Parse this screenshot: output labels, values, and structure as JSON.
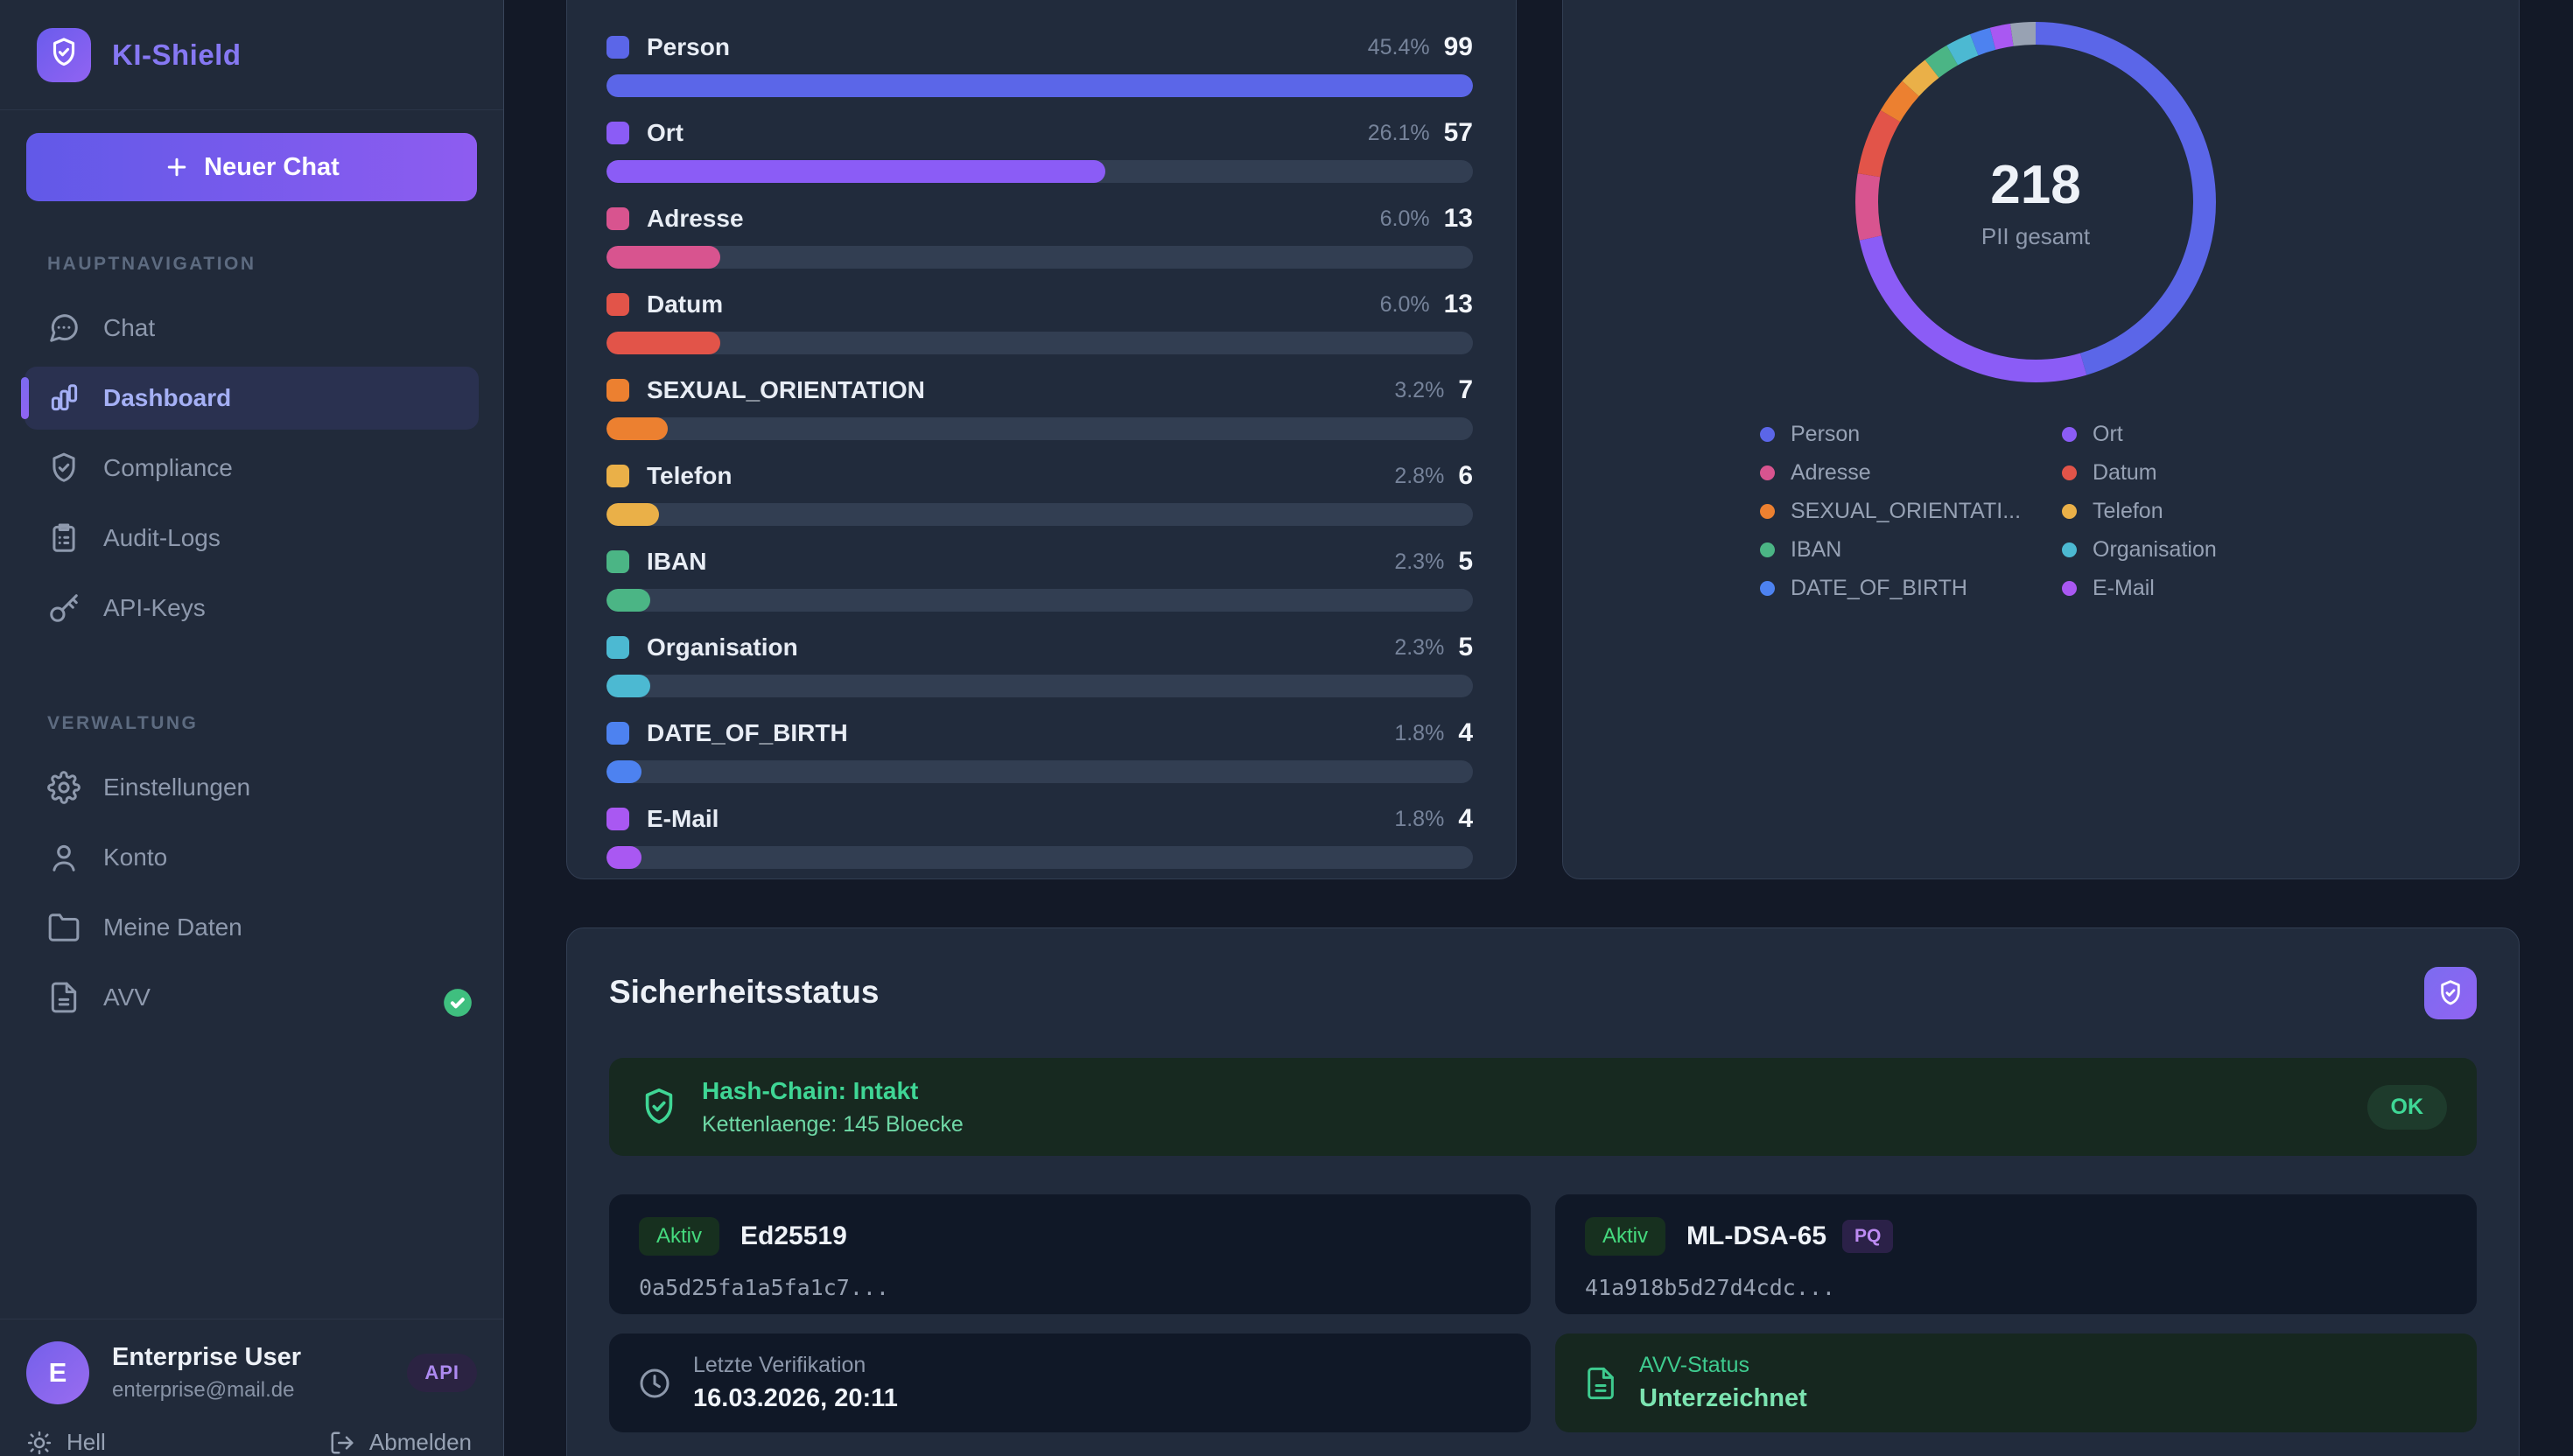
{
  "app": {
    "name": "KI-Shield"
  },
  "sidebar": {
    "new_chat": "Neuer Chat",
    "sections": [
      {
        "label": "HAUPTNAVIGATION",
        "items": [
          {
            "label": "Chat",
            "icon": "chat",
            "active": false
          },
          {
            "label": "Dashboard",
            "icon": "bar-chart",
            "active": true
          },
          {
            "label": "Compliance",
            "icon": "shield-check",
            "active": false
          },
          {
            "label": "Audit-Logs",
            "icon": "clipboard",
            "active": false
          },
          {
            "label": "API-Keys",
            "icon": "key",
            "active": false
          }
        ]
      },
      {
        "label": "VERWALTUNG",
        "items": [
          {
            "label": "Einstellungen",
            "icon": "gear",
            "active": false
          },
          {
            "label": "Konto",
            "icon": "user",
            "active": false
          },
          {
            "label": "Meine Daten",
            "icon": "folder",
            "active": false
          },
          {
            "label": "AVV",
            "icon": "file-text",
            "active": false,
            "check_badge": true
          }
        ]
      }
    ],
    "user": {
      "initial": "E",
      "name": "Enterprise User",
      "email": "enterprise@mail.de",
      "badge": "API"
    },
    "footer": {
      "theme": "Hell",
      "logout": "Abmelden"
    }
  },
  "chart_data": [
    {
      "type": "bar",
      "orientation": "horizontal",
      "categories": [
        "Person",
        "Ort",
        "Adresse",
        "Datum",
        "SEXUAL_ORIENTATION",
        "Telefon",
        "IBAN",
        "Organisation",
        "DATE_OF_BIRTH",
        "E-Mail"
      ],
      "values": [
        99,
        57,
        13,
        13,
        7,
        6,
        5,
        5,
        4,
        4
      ],
      "percent_labels": [
        "45.4%",
        "26.1%",
        "6.0%",
        "6.0%",
        "3.2%",
        "2.8%",
        "2.3%",
        "2.3%",
        "1.8%",
        "1.8%"
      ],
      "colors": [
        "#5b66e8",
        "#8b5cf6",
        "#d8548f",
        "#e25449",
        "#ec8030",
        "#eab048",
        "#4bb585",
        "#4cb9d2",
        "#4d82f0",
        "#a958f2"
      ],
      "xlim": [
        0,
        99
      ],
      "title": ""
    },
    {
      "type": "donut",
      "total": 218,
      "center_value": "218",
      "center_label": "PII gesamt",
      "segments": [
        {
          "label": "Person",
          "value": 99,
          "color": "#5b66e8"
        },
        {
          "label": "Ort",
          "value": 57,
          "color": "#8b5cf6"
        },
        {
          "label": "Adresse",
          "value": 13,
          "color": "#d8548f"
        },
        {
          "label": "Datum",
          "value": 13,
          "color": "#e25449"
        },
        {
          "label": "SEXUAL_ORIENTATION",
          "value": 7,
          "color": "#ec8030"
        },
        {
          "label": "Telefon",
          "value": 6,
          "color": "#eab048"
        },
        {
          "label": "IBAN",
          "value": 5,
          "color": "#4bb585"
        },
        {
          "label": "Organisation",
          "value": 5,
          "color": "#4cb9d2"
        },
        {
          "label": "DATE_OF_BIRTH",
          "value": 4,
          "color": "#4d82f0"
        },
        {
          "label": "E-Mail",
          "value": 4,
          "color": "#a958f2"
        },
        {
          "label": "",
          "value": 5,
          "color": "#98a2b3"
        }
      ],
      "legend": [
        {
          "label": "Person",
          "color": "#5b66e8"
        },
        {
          "label": "Ort",
          "color": "#8b5cf6"
        },
        {
          "label": "Adresse",
          "color": "#d8548f"
        },
        {
          "label": "Datum",
          "color": "#e25449"
        },
        {
          "label": "SEXUAL_ORIENTATI...",
          "color": "#ec8030"
        },
        {
          "label": "Telefon",
          "color": "#eab048"
        },
        {
          "label": "IBAN",
          "color": "#4bb585"
        },
        {
          "label": "Organisation",
          "color": "#4cb9d2"
        },
        {
          "label": "DATE_OF_BIRTH",
          "color": "#4d82f0"
        },
        {
          "label": "E-Mail",
          "color": "#a958f2"
        }
      ],
      "legend_position": "bottom"
    }
  ],
  "security": {
    "title": "Sicherheitsstatus",
    "hash_chain": {
      "title": "Hash-Chain: Intakt",
      "subtitle": "Kettenlaenge: 145 Bloecke",
      "status": "OK"
    },
    "keys": [
      {
        "status": "Aktiv",
        "name": "Ed25519",
        "fingerprint": "0a5d25fa1a5fa1c7...",
        "badge": ""
      },
      {
        "status": "Aktiv",
        "name": "ML-DSA-65",
        "fingerprint": "41a918b5d27d4cdc...",
        "badge": "PQ"
      }
    ],
    "last_verification": {
      "label": "Letzte Verifikation",
      "value": "16.03.2026, 20:11"
    },
    "avv_status": {
      "label": "AVV-Status",
      "value": "Unterzeichnet"
    },
    "colors": {
      "ok_green": "#3fd796",
      "accent_purple": "#8b5cf6",
      "accent_indigo": "#6366f1"
    }
  }
}
